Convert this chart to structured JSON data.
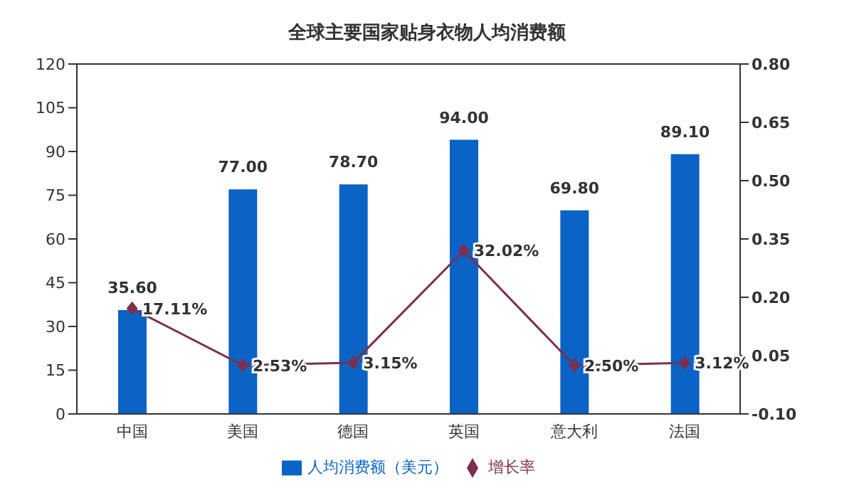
{
  "chart_data": {
    "type": "bar",
    "title": "全球主要国家贴身衣物人均消费额",
    "categories": [
      "中国",
      "美国",
      "德国",
      "英国",
      "意大利",
      "法国"
    ],
    "series": [
      {
        "name": "人均消费额（美元）",
        "color": "#0b63c5",
        "values": [
          35.6,
          77.0,
          78.7,
          94.0,
          69.8,
          89.1
        ],
        "value_labels": [
          "35.60",
          "77.00",
          "78.70",
          "94.00",
          "69.80",
          "89.10"
        ]
      },
      {
        "name": "增长率",
        "type": "line",
        "axis": "y2",
        "color": "#7b3050",
        "marker": "diamond",
        "values": [
          0.1711,
          0.0253,
          0.0315,
          0.3202,
          0.025,
          0.0312
        ],
        "value_labels": [
          "17.11%",
          "2.53%",
          "3.15%",
          "32.02%",
          "2.50%",
          "3.12%"
        ]
      }
    ],
    "ylim": [
      0,
      120
    ],
    "yticks": [
      0,
      15,
      30,
      45,
      60,
      75,
      90,
      105,
      120
    ],
    "y2lim": [
      -0.1,
      0.8
    ],
    "y2ticks": [
      {
        "value": -0.1,
        "label": "-0.10"
      },
      {
        "value": 0.05,
        "label": "0.05"
      },
      {
        "value": 0.2,
        "label": "0.20"
      },
      {
        "value": 0.35,
        "label": "0.35"
      },
      {
        "value": 0.5,
        "label": "0.50"
      },
      {
        "value": 0.65,
        "label": "0.65"
      },
      {
        "value": 0.8,
        "label": "0.80"
      }
    ],
    "grid": false,
    "legend": "bottom"
  }
}
